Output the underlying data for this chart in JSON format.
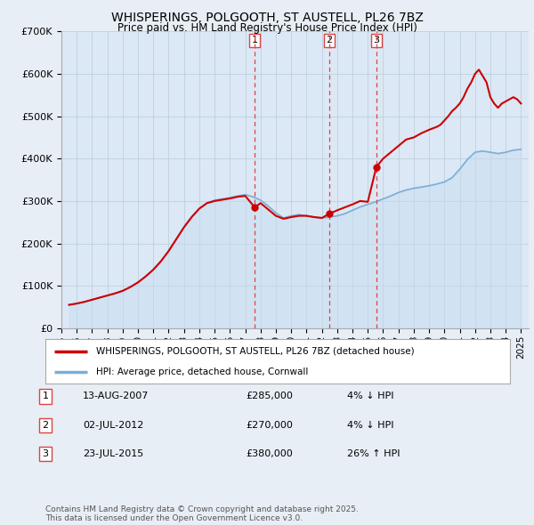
{
  "title": "WHISPERINGS, POLGOOTH, ST AUSTELL, PL26 7BZ",
  "subtitle": "Price paid vs. HM Land Registry's House Price Index (HPI)",
  "background_color": "#e8eef5",
  "plot_bg_color": "#dce8f5",
  "ylim": [
    0,
    700000
  ],
  "yticks": [
    0,
    100000,
    200000,
    300000,
    400000,
    500000,
    600000,
    700000
  ],
  "ytick_labels": [
    "£0",
    "£100K",
    "£200K",
    "£300K",
    "£400K",
    "£500K",
    "£600K",
    "£700K"
  ],
  "xlim_start": 1995.33,
  "xlim_end": 2025.5,
  "red_line_color": "#cc0000",
  "blue_line_color": "#7aaed6",
  "blue_fill_color": "#c8ddf0",
  "vline_color": "#dd4444",
  "vline_style": "--",
  "transactions": [
    {
      "num": 1,
      "date": "13-AUG-2007",
      "price": 285000,
      "change": "4% ↓ HPI",
      "x": 2007.617
    },
    {
      "num": 2,
      "date": "02-JUL-2012",
      "price": 270000,
      "change": "4% ↓ HPI",
      "x": 2012.497
    },
    {
      "num": 3,
      "date": "23-JUL-2015",
      "price": 380000,
      "change": "26% ↑ HPI",
      "x": 2015.556
    }
  ],
  "legend_red_label": "WHISPERINGS, POLGOOTH, ST AUSTELL, PL26 7BZ (detached house)",
  "legend_blue_label": "HPI: Average price, detached house, Cornwall",
  "footnote": "Contains HM Land Registry data © Crown copyright and database right 2025.\nThis data is licensed under the Open Government Licence v3.0.",
  "hpi_years": [
    1995.5,
    1996.0,
    1996.5,
    1997.0,
    1997.5,
    1998.0,
    1998.5,
    1999.0,
    1999.5,
    2000.0,
    2000.5,
    2001.0,
    2001.5,
    2002.0,
    2002.5,
    2003.0,
    2003.5,
    2004.0,
    2004.5,
    2005.0,
    2005.5,
    2006.0,
    2006.5,
    2007.0,
    2007.5,
    2008.0,
    2008.5,
    2009.0,
    2009.5,
    2010.0,
    2010.5,
    2011.0,
    2011.5,
    2012.0,
    2012.5,
    2013.0,
    2013.5,
    2014.0,
    2014.5,
    2015.0,
    2015.5,
    2016.0,
    2016.5,
    2017.0,
    2017.5,
    2018.0,
    2018.5,
    2019.0,
    2019.5,
    2020.0,
    2020.5,
    2021.0,
    2021.5,
    2022.0,
    2022.5,
    2023.0,
    2023.5,
    2024.0,
    2024.5,
    2025.0
  ],
  "hpi_values": [
    55000,
    58000,
    62000,
    67000,
    72000,
    77000,
    82000,
    88000,
    97000,
    108000,
    122000,
    138000,
    158000,
    182000,
    210000,
    238000,
    262000,
    282000,
    295000,
    302000,
    305000,
    308000,
    312000,
    315000,
    310000,
    302000,
    288000,
    272000,
    260000,
    265000,
    268000,
    265000,
    262000,
    260000,
    262000,
    265000,
    270000,
    278000,
    286000,
    292000,
    298000,
    305000,
    312000,
    320000,
    326000,
    330000,
    333000,
    336000,
    340000,
    345000,
    355000,
    375000,
    398000,
    415000,
    418000,
    415000,
    412000,
    415000,
    420000,
    422000
  ],
  "red_years": [
    1995.5,
    1996.0,
    1996.5,
    1997.0,
    1997.5,
    1998.0,
    1998.5,
    1999.0,
    1999.5,
    2000.0,
    2000.5,
    2001.0,
    2001.5,
    2002.0,
    2002.5,
    2003.0,
    2003.5,
    2004.0,
    2004.5,
    2005.0,
    2005.5,
    2006.0,
    2006.5,
    2007.0,
    2007.617,
    2008.0,
    2008.5,
    2009.0,
    2009.5,
    2010.0,
    2010.5,
    2011.0,
    2011.5,
    2012.0,
    2012.497,
    2013.0,
    2013.5,
    2014.0,
    2014.5,
    2015.0,
    2015.556,
    2016.0,
    2016.5,
    2017.0,
    2017.5,
    2018.0,
    2018.5,
    2019.0,
    2019.5,
    2019.75,
    2020.0,
    2020.25,
    2020.5,
    2020.75,
    2021.0,
    2021.25,
    2021.5,
    2021.75,
    2022.0,
    2022.25,
    2022.5,
    2022.75,
    2023.0,
    2023.25,
    2023.5,
    2023.75,
    2024.0,
    2024.25,
    2024.5,
    2024.75,
    2025.0
  ],
  "red_values": [
    55000,
    58000,
    62000,
    67000,
    72000,
    77000,
    82000,
    88000,
    97000,
    108000,
    122000,
    138000,
    158000,
    182000,
    210000,
    238000,
    262000,
    282000,
    295000,
    300000,
    303000,
    306000,
    310000,
    312000,
    285000,
    295000,
    280000,
    265000,
    258000,
    262000,
    265000,
    265000,
    262000,
    260000,
    270000,
    278000,
    285000,
    292000,
    300000,
    298000,
    380000,
    400000,
    415000,
    430000,
    445000,
    450000,
    460000,
    468000,
    475000,
    480000,
    490000,
    500000,
    512000,
    520000,
    530000,
    545000,
    565000,
    580000,
    600000,
    610000,
    595000,
    580000,
    545000,
    530000,
    520000,
    530000,
    535000,
    540000,
    545000,
    540000,
    530000
  ]
}
